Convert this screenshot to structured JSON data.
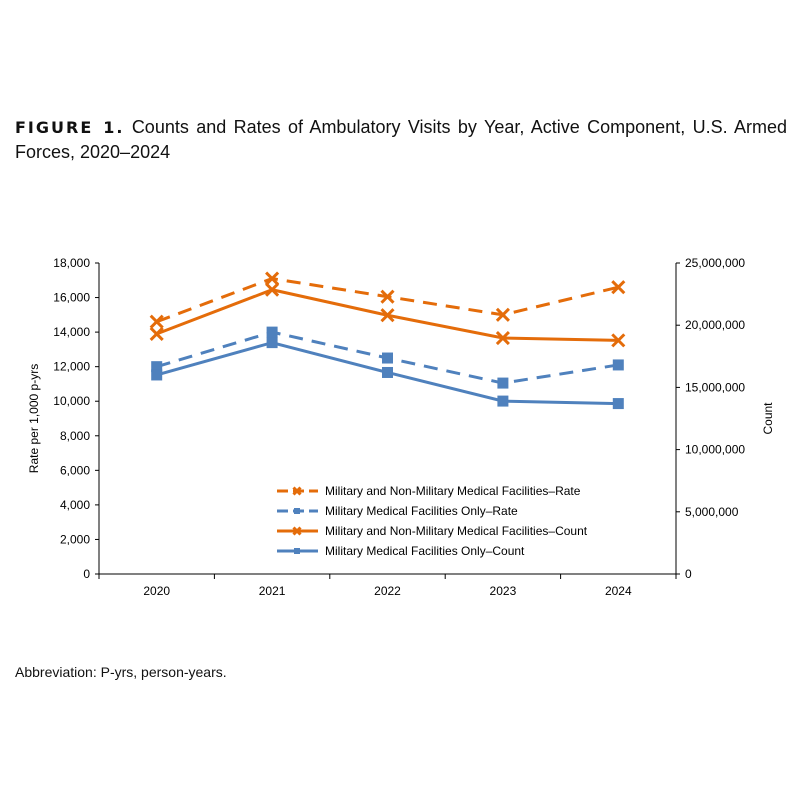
{
  "figure": {
    "label": "FIGURE 1.",
    "title": "Counts and Rates of Ambulatory Visits by Year, Active Component, U.S. Armed Forces, 2020–2024",
    "abbreviation": "Abbreviation: P-yrs, person-years."
  },
  "chart_data": {
    "type": "line",
    "categories": [
      "2020",
      "2021",
      "2022",
      "2023",
      "2024"
    ],
    "ylabel": "Rate per 1,000 p-yrs",
    "ylim": [
      0,
      18000
    ],
    "yticks": [
      "0",
      "2,000",
      "4,000",
      "6,000",
      "8,000",
      "10,000",
      "12,000",
      "14,000",
      "16,000",
      "18,000"
    ],
    "y2label": "Count",
    "y2lim": [
      0,
      25000000
    ],
    "y2ticks": [
      "0",
      "5,000,000",
      "10,000,000",
      "15,000,000",
      "20,000,000",
      "25,000,000"
    ],
    "grid": false,
    "legend_position": "bottom-center-inside",
    "series": [
      {
        "name": "Military and Non-Military Medical Facilities–Rate",
        "axis": "left",
        "style": "dashed",
        "marker": "x",
        "color": "#E46C0A",
        "values": [
          14600,
          17100,
          16050,
          15000,
          16600
        ]
      },
      {
        "name": "Military Medical Facilities Only–Rate",
        "axis": "left",
        "style": "dashed",
        "marker": "square",
        "color": "#4F81BD",
        "values": [
          12000,
          14000,
          12500,
          11050,
          12100
        ]
      },
      {
        "name": "Military and Non-Military Medical Facilities–Count",
        "axis": "right",
        "style": "solid",
        "marker": "x",
        "color": "#E46C0A",
        "values": [
          19300000,
          22850000,
          20800000,
          18970000,
          18780000
        ]
      },
      {
        "name": "Military Medical Facilities Only–Count",
        "axis": "right",
        "style": "solid",
        "marker": "square",
        "color": "#4F81BD",
        "values": [
          16000000,
          18600000,
          16200000,
          13900000,
          13700000
        ]
      }
    ]
  }
}
